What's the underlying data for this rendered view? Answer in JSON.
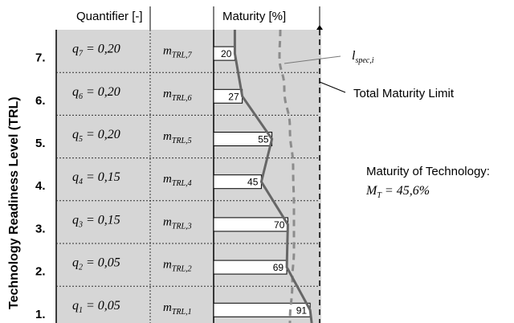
{
  "headers": {
    "quantifier": "Quantifier [-]",
    "maturity": "Maturity [%]"
  },
  "y_axis_label": "Technology Readiness Level (TRL)",
  "annotations": {
    "spec_line_main": "l",
    "spec_line_sub": "spec,i",
    "total_limit": "Total Maturity Limit",
    "result_title": "Maturity of Technology:",
    "result_main": "M",
    "result_sub": "T",
    "result_rest": " = 45,6%"
  },
  "rows": [
    {
      "level": "7.",
      "q_main": "q",
      "q_sub": "7",
      "q_rest": " = 0,20",
      "m_main": "m",
      "m_sub": "TRL,7",
      "value": 20
    },
    {
      "level": "6.",
      "q_main": "q",
      "q_sub": "6",
      "q_rest": " = 0,20",
      "m_main": "m",
      "m_sub": "TRL,6",
      "value": 27
    },
    {
      "level": "5.",
      "q_main": "q",
      "q_sub": "5",
      "q_rest": " = 0,20",
      "m_main": "m",
      "m_sub": "TRL,5",
      "value": 55
    },
    {
      "level": "4.",
      "q_main": "q",
      "q_sub": "4",
      "q_rest": " = 0,15",
      "m_main": "m",
      "m_sub": "TRL,4",
      "value": 45
    },
    {
      "level": "3.",
      "q_main": "q",
      "q_sub": "3",
      "q_rest": " = 0,15",
      "m_main": "m",
      "m_sub": "TRL,3",
      "value": 70
    },
    {
      "level": "2.",
      "q_main": "q",
      "q_sub": "2",
      "q_rest": " = 0,05",
      "m_main": "m",
      "m_sub": "TRL,2",
      "value": 69
    },
    {
      "level": "1.",
      "q_main": "q",
      "q_sub": "1",
      "q_rest": " = 0,05",
      "m_main": "m",
      "m_sub": "TRL,1",
      "value": 91
    }
  ],
  "chart_data": {
    "type": "bar",
    "orientation": "horizontal",
    "categories": [
      "7.",
      "6.",
      "5.",
      "4.",
      "3.",
      "2.",
      "1."
    ],
    "values": [
      20,
      27,
      55,
      45,
      70,
      69,
      91
    ],
    "xlim": [
      0,
      100
    ],
    "connected_line": true,
    "spec_limit_curve": true,
    "total_maturity_limit": 100,
    "colors": {
      "panel": "#d6d6d6",
      "bar_fill": "#ffffff",
      "line": "#666666",
      "spec_curve": "#8c8c8c"
    }
  }
}
